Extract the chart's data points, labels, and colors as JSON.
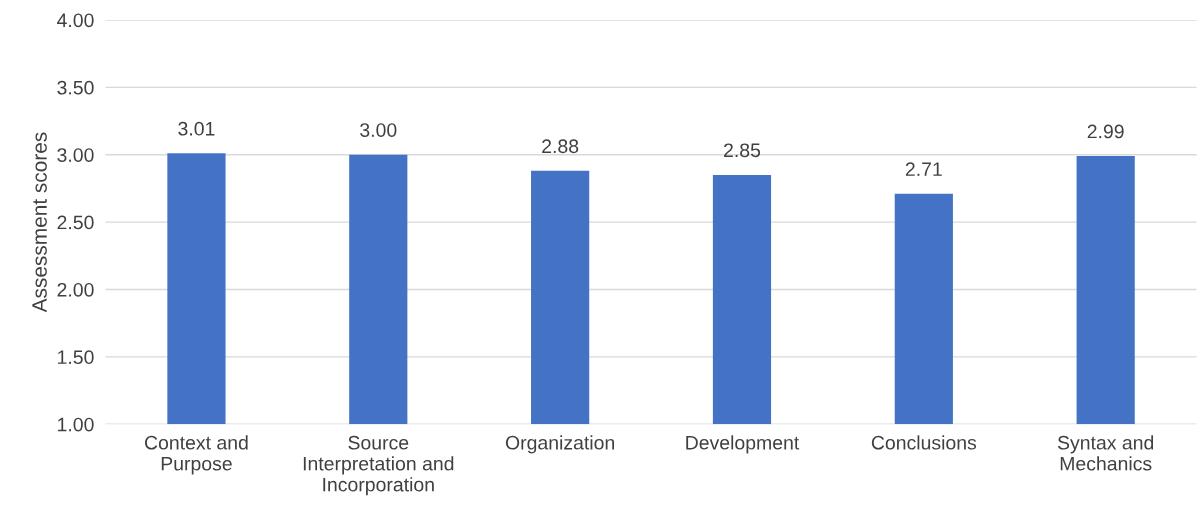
{
  "chart_data": {
    "type": "bar",
    "categories": [
      "Context and\nPurpose",
      "Source\nInterpretation and\nIncorporation",
      "Organization",
      "Development",
      "Conclusions",
      "Syntax and\nMechanics"
    ],
    "values": [
      3.01,
      3.0,
      2.88,
      2.85,
      2.71,
      2.99
    ],
    "value_labels": [
      "3.01",
      "3.00",
      "2.88",
      "2.85",
      "2.71",
      "2.99"
    ],
    "color": "#4472c4",
    "ylabel": "Assessment scores",
    "ylim": [
      1,
      4
    ],
    "yticks": [
      {
        "value": 1,
        "label": "1.00"
      },
      {
        "value": 1.5,
        "label": "1.50"
      },
      {
        "value": 2,
        "label": "2.00"
      },
      {
        "value": 2.5,
        "label": "2.50"
      },
      {
        "value": 3,
        "label": "3.00"
      },
      {
        "value": 3.5,
        "label": "3.50"
      },
      {
        "value": 4,
        "label": "4.00"
      }
    ],
    "grid": "y"
  }
}
